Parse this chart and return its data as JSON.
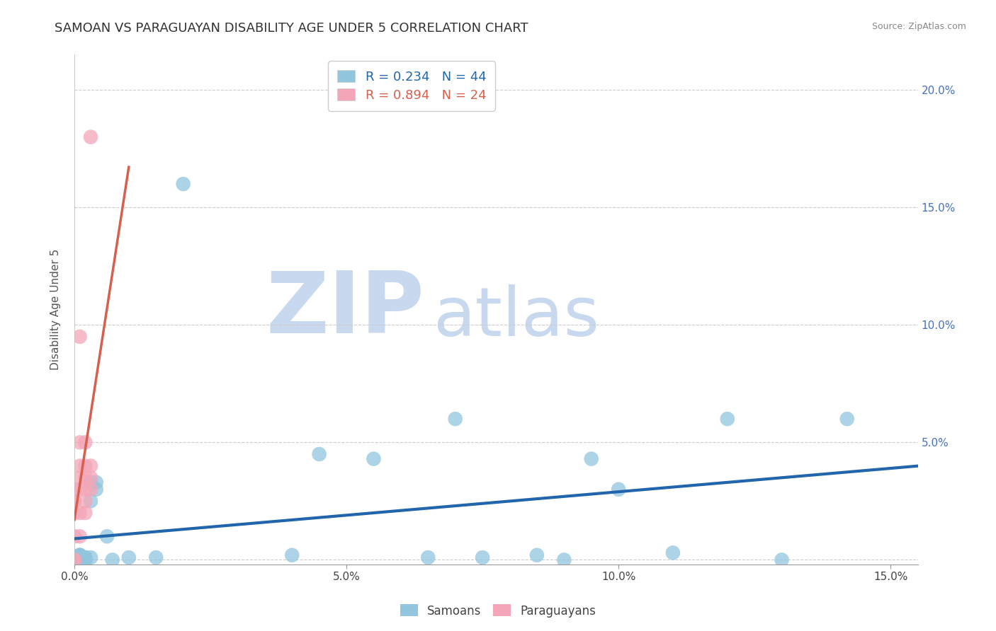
{
  "title": "SAMOAN VS PARAGUAYAN DISABILITY AGE UNDER 5 CORRELATION CHART",
  "source_text": "Source: ZipAtlas.com",
  "ylabel": "Disability Age Under 5",
  "xlim": [
    0.0,
    0.155
  ],
  "ylim": [
    -0.002,
    0.215
  ],
  "yticks": [
    0.0,
    0.05,
    0.1,
    0.15,
    0.2
  ],
  "xticks": [
    0.0,
    0.05,
    0.1,
    0.15
  ],
  "xtick_labels": [
    "0.0%",
    "5.0%",
    "10.0%",
    "15.0%"
  ],
  "ytick_labels_right": [
    "",
    "5.0%",
    "10.0%",
    "15.0%",
    "20.0%"
  ],
  "samoan_color": "#92c5de",
  "paraguayan_color": "#f4a6b8",
  "samoan_line_color": "#2166ac",
  "paraguayan_line_color": "#d6604d",
  "title_fontsize": 13,
  "axis_label_fontsize": 11,
  "tick_fontsize": 11,
  "watermark_zip": "ZIP",
  "watermark_atlas": "atlas",
  "watermark_color": "#c8d8ee",
  "background_color": "#ffffff",
  "sam_x": [
    0.0,
    0.0,
    0.0,
    0.0,
    0.0,
    0.0,
    0.0,
    0.0,
    0.001,
    0.001,
    0.001,
    0.001,
    0.001,
    0.001,
    0.001,
    0.001,
    0.002,
    0.002,
    0.002,
    0.002,
    0.003,
    0.003,
    0.003,
    0.004,
    0.004,
    0.006,
    0.007,
    0.01,
    0.015,
    0.02,
    0.04,
    0.045,
    0.055,
    0.065,
    0.07,
    0.075,
    0.085,
    0.09,
    0.095,
    0.1,
    0.11,
    0.12,
    0.13,
    0.142
  ],
  "sam_y": [
    0.0,
    0.0,
    0.0,
    0.0,
    0.001,
    0.001,
    0.001,
    0.001,
    0.0,
    0.0,
    0.001,
    0.001,
    0.001,
    0.002,
    0.002,
    0.002,
    0.0,
    0.0,
    0.001,
    0.001,
    0.001,
    0.025,
    0.033,
    0.03,
    0.033,
    0.01,
    0.0,
    0.001,
    0.001,
    0.16,
    0.002,
    0.045,
    0.043,
    0.001,
    0.06,
    0.001,
    0.002,
    0.0,
    0.043,
    0.03,
    0.003,
    0.06,
    0.0,
    0.06
  ],
  "par_x": [
    0.0,
    0.0,
    0.0,
    0.0,
    0.0,
    0.0,
    0.0,
    0.001,
    0.001,
    0.001,
    0.001,
    0.001,
    0.001,
    0.001,
    0.002,
    0.002,
    0.002,
    0.002,
    0.002,
    0.002,
    0.003,
    0.003,
    0.003,
    0.003
  ],
  "par_y": [
    0.0,
    0.0,
    0.01,
    0.02,
    0.025,
    0.025,
    0.03,
    0.01,
    0.02,
    0.03,
    0.035,
    0.04,
    0.05,
    0.095,
    0.02,
    0.025,
    0.03,
    0.035,
    0.04,
    0.05,
    0.03,
    0.035,
    0.04,
    0.18
  ]
}
